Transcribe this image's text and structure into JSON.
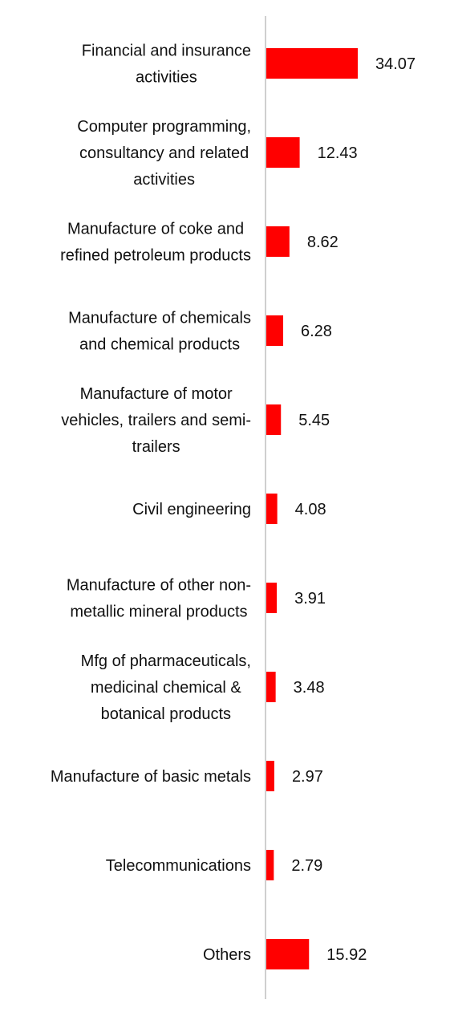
{
  "chart_data": {
    "type": "bar",
    "orientation": "horizontal",
    "categories": [
      [
        "Financial and insurance",
        "activities"
      ],
      [
        "Computer programming,",
        "consultancy and related",
        "activities"
      ],
      [
        "Manufacture of coke and",
        "refined petroleum products"
      ],
      [
        "Manufacture of chemicals",
        "and chemical products"
      ],
      [
        "Manufacture of motor",
        "vehicles, trailers and semi-",
        "trailers"
      ],
      [
        "Civil engineering"
      ],
      [
        "Manufacture of other non-",
        "metallic mineral products"
      ],
      [
        "Mfg of pharmaceuticals,",
        "medicinal chemical &",
        "botanical products"
      ],
      [
        "Manufacture of basic metals"
      ],
      [
        "Telecommunications"
      ],
      [
        "Others"
      ]
    ],
    "values": [
      34.07,
      12.43,
      8.62,
      6.28,
      5.45,
      4.08,
      3.91,
      3.48,
      2.97,
      2.79,
      15.92
    ],
    "value_labels": [
      "34.07",
      "12.43",
      "8.62",
      "6.28",
      "5.45",
      "4.08",
      "3.91",
      "3.48",
      "2.97",
      "2.79",
      "15.92"
    ],
    "bar_color": "#ff0000",
    "axis_color": "#cfcfcf",
    "grid": false,
    "legend": "none"
  }
}
